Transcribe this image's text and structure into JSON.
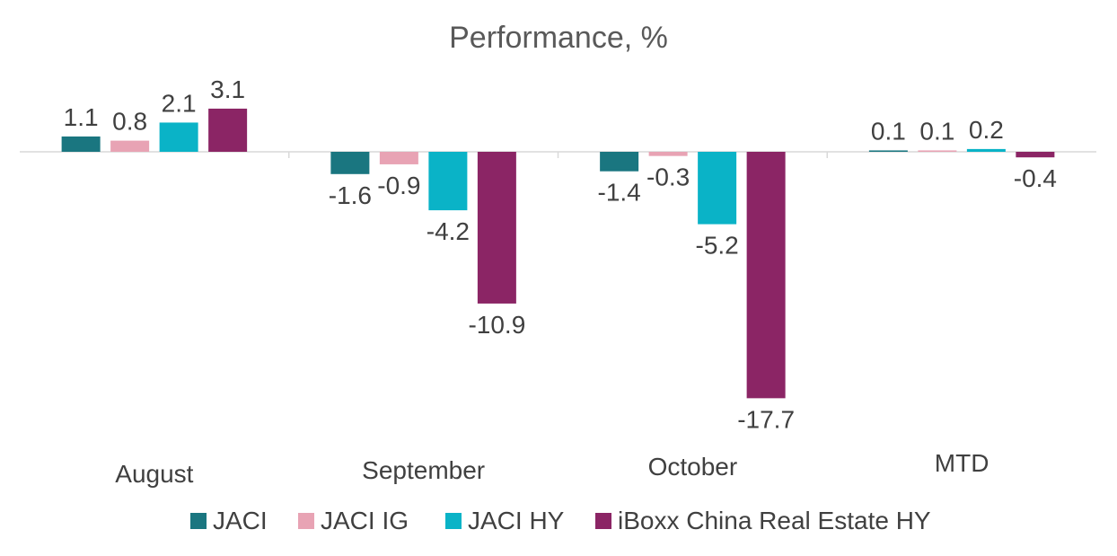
{
  "chart_data": {
    "type": "bar",
    "title": "Performance, %",
    "xlabel": "",
    "ylabel": "",
    "categories": [
      "August",
      "September",
      "October",
      "MTD"
    ],
    "series": [
      {
        "name": "JACI",
        "color": "#1a7680",
        "values": [
          1.1,
          -1.6,
          -1.4,
          0.1
        ]
      },
      {
        "name": "JACI IG",
        "color": "#e8a3b4",
        "values": [
          0.8,
          -0.9,
          -0.3,
          0.1
        ]
      },
      {
        "name": "JACI HY",
        "color": "#0ab3c7",
        "values": [
          2.1,
          -4.2,
          -5.2,
          0.2
        ]
      },
      {
        "name": "iBoxx China Real Estate HY",
        "color": "#8b2565",
        "values": [
          3.1,
          -10.9,
          -17.7,
          -0.4
        ]
      }
    ],
    "data_labels": [
      [
        "1.1",
        "0.8",
        "2.1",
        "3.1"
      ],
      [
        "-1.6",
        "-0.9",
        "-4.2",
        "-10.9"
      ],
      [
        "-1.4",
        "-0.3",
        "-5.2",
        "-17.7"
      ],
      [
        "0.1",
        "0.1",
        "0.2",
        "-0.4"
      ]
    ],
    "grid": false,
    "legend": "bottom"
  }
}
